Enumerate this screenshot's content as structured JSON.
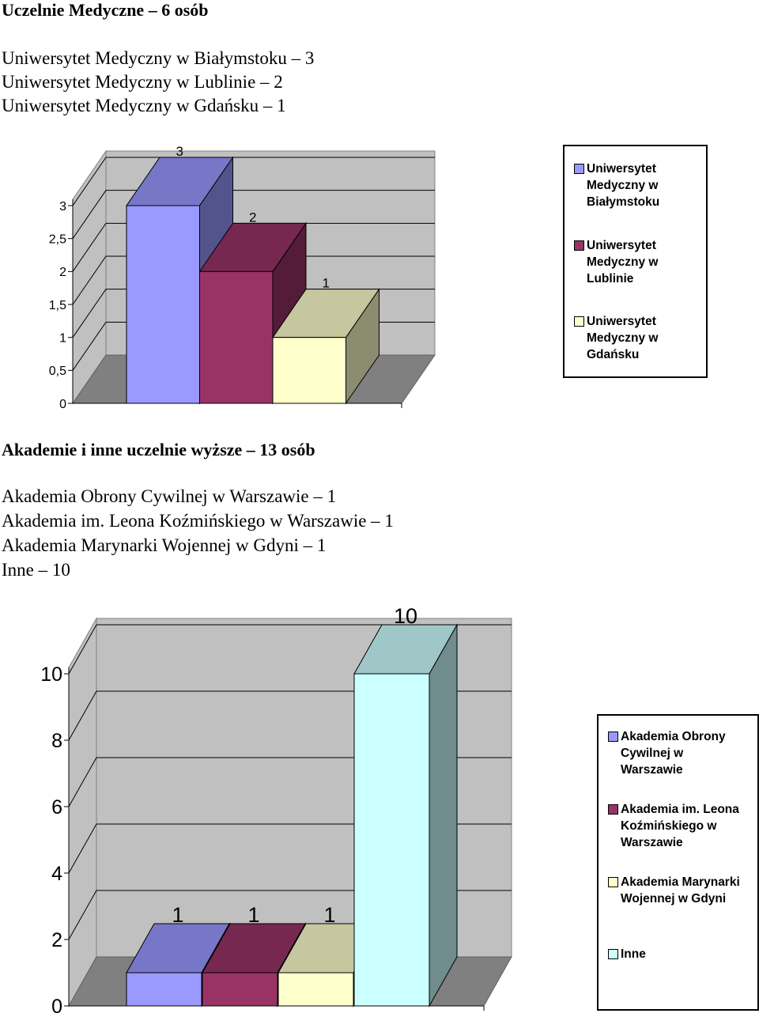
{
  "section1": {
    "heading": "Uczelnie Medyczne – 6 osób",
    "lines": [
      "Uniwersytet Medyczny w Białymstoku – 3",
      "Uniwersytet Medyczny w Lublinie – 2",
      "Uniwersytet Medyczny w Gdańsku – 1"
    ]
  },
  "section2": {
    "heading": "Akademie i inne uczelnie wyższe – 13 osób",
    "lines": [
      "Akademia Obrony Cywilnej w Warszawie – 1",
      "Akademia im. Leona Koźmińskiego w Warszawie – 1",
      "Akademia Marynarki Wojennej w Gdyni – 1",
      "Inne – 10"
    ]
  },
  "chart_data": [
    {
      "type": "bar",
      "categories": [
        "Uniwersytet Medyczny w Białymstoku",
        "Uniwersytet Medyczny w Lublinie",
        "Uniwersytet Medyczny w Gdańsku"
      ],
      "values": [
        3,
        2,
        1
      ],
      "data_labels": [
        "3",
        "2",
        "1"
      ],
      "ylim": [
        0,
        3
      ],
      "y_ticks": [
        "0",
        "0,5",
        "1",
        "1,5",
        "2",
        "2,5",
        "3"
      ],
      "legend": {
        "position": "right",
        "entries": [
          [
            "Uniwersytet",
            "Medyczny w",
            "Białymstoku"
          ],
          [
            "Uniwersytet",
            "Medyczny w",
            "Lublinie"
          ],
          [
            "Uniwersytet",
            "Medyczny w",
            "Gdańsku"
          ]
        ]
      },
      "colors": [
        "#9999ff",
        "#993366",
        "#ffffcc"
      ],
      "grid": true,
      "three_d": true
    },
    {
      "type": "bar",
      "categories": [
        "Akademia Obrony Cywilnej w Warszawie",
        "Akademia im. Leona Koźmińskiego w Warszawie",
        "Akademia Marynarki Wojennej w Gdyni",
        "Inne"
      ],
      "values": [
        1,
        1,
        1,
        10
      ],
      "data_labels": [
        "1",
        "1",
        "1",
        "10"
      ],
      "ylim": [
        0,
        10
      ],
      "y_ticks": [
        "0",
        "2",
        "4",
        "6",
        "8",
        "10"
      ],
      "legend": {
        "position": "right",
        "entries": [
          [
            "Akademia Obrony",
            "Cywilnej w",
            "Warszawie"
          ],
          [
            "Akademia im. Leona",
            "Koźmińskiego w",
            "Warszawie"
          ],
          [
            "Akademia Marynarki",
            "Wojennej w Gdyni"
          ],
          [
            "Inne"
          ]
        ]
      },
      "colors": [
        "#9999ff",
        "#993366",
        "#ffffcc",
        "#ccffff"
      ],
      "grid": true,
      "three_d": true
    }
  ]
}
